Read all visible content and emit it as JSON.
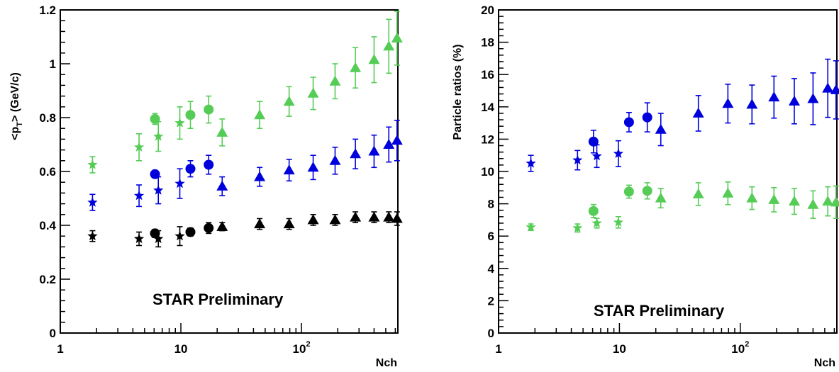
{
  "colors": {
    "black": "#000000",
    "blue": "#0000dd",
    "green": "#55cc55"
  },
  "chart_data": [
    {
      "type": "scatter",
      "xscale": "log",
      "xlim": [
        1,
        630
      ],
      "ylim": [
        0,
        1.2
      ],
      "xlabel": "Nch",
      "ylabel": "<p_T> (GeV/c)",
      "ylabel_parts": [
        "<p",
        "T",
        "> (GeV/c)"
      ],
      "xticks": [
        {
          "value": 1,
          "label": "1",
          "sup": ""
        },
        {
          "value": 10,
          "label": "10",
          "sup": ""
        },
        {
          "value": 100,
          "label": "10",
          "sup": "2"
        }
      ],
      "yticks": [
        "0",
        "0.2",
        "0.4",
        "0.6",
        "0.8",
        "1",
        "1.2"
      ],
      "annotation": "STAR Preliminary",
      "series": [
        {
          "color": "black",
          "marker": "star",
          "points": [
            [
              1.85,
              0.36,
              0.02
            ],
            [
              4.5,
              0.35,
              0.025
            ],
            [
              6.5,
              0.35,
              0.03
            ],
            [
              9.8,
              0.36,
              0.035
            ]
          ]
        },
        {
          "color": "black",
          "marker": "circle",
          "points": [
            [
              6.1,
              0.37,
              0.015
            ],
            [
              12.0,
              0.375,
              0.015
            ],
            [
              17.0,
              0.39,
              0.02
            ]
          ]
        },
        {
          "color": "black",
          "marker": "triangle",
          "points": [
            [
              22,
              0.395,
              0.015
            ],
            [
              45,
              0.405,
              0.02
            ],
            [
              79,
              0.405,
              0.02
            ],
            [
              125,
              0.42,
              0.02
            ],
            [
              190,
              0.42,
              0.02
            ],
            [
              280,
              0.43,
              0.02
            ],
            [
              400,
              0.43,
              0.02
            ],
            [
              530,
              0.43,
              0.02
            ],
            [
              620,
              0.425,
              0.025
            ]
          ]
        },
        {
          "color": "blue",
          "marker": "star",
          "points": [
            [
              1.85,
              0.485,
              0.03
            ],
            [
              4.5,
              0.51,
              0.04
            ],
            [
              6.5,
              0.53,
              0.05
            ],
            [
              9.8,
              0.555,
              0.055
            ]
          ]
        },
        {
          "color": "blue",
          "marker": "circle",
          "points": [
            [
              6.1,
              0.59,
              0.0
            ],
            [
              12.0,
              0.61,
              0.03
            ],
            [
              17.0,
              0.625,
              0.035
            ]
          ]
        },
        {
          "color": "blue",
          "marker": "triangle",
          "points": [
            [
              22,
              0.545,
              0.035
            ],
            [
              45,
              0.58,
              0.035
            ],
            [
              79,
              0.605,
              0.04
            ],
            [
              125,
              0.615,
              0.045
            ],
            [
              190,
              0.64,
              0.05
            ],
            [
              280,
              0.665,
              0.055
            ],
            [
              400,
              0.675,
              0.06
            ],
            [
              530,
              0.7,
              0.065
            ],
            [
              620,
              0.715,
              0.075
            ]
          ]
        },
        {
          "color": "green",
          "marker": "star",
          "points": [
            [
              1.85,
              0.625,
              0.03
            ],
            [
              4.5,
              0.69,
              0.05
            ],
            [
              6.5,
              0.73,
              0.055
            ],
            [
              9.8,
              0.78,
              0.06
            ]
          ]
        },
        {
          "color": "green",
          "marker": "circle",
          "points": [
            [
              6.1,
              0.795,
              0.02
            ],
            [
              12.0,
              0.81,
              0.05
            ],
            [
              17.0,
              0.83,
              0.05
            ]
          ]
        },
        {
          "color": "green",
          "marker": "triangle",
          "points": [
            [
              22,
              0.745,
              0.05
            ],
            [
              45,
              0.81,
              0.05
            ],
            [
              79,
              0.86,
              0.055
            ],
            [
              125,
              0.89,
              0.06
            ],
            [
              190,
              0.935,
              0.065
            ],
            [
              280,
              0.985,
              0.075
            ],
            [
              400,
              1.015,
              0.085
            ],
            [
              530,
              1.065,
              0.1
            ],
            [
              620,
              1.095,
              0.1
            ]
          ]
        }
      ]
    },
    {
      "type": "scatter",
      "xscale": "log",
      "xlim": [
        1,
        630
      ],
      "ylim": [
        0,
        20
      ],
      "xlabel": "Nch",
      "ylabel": "Particle ratios (%)",
      "xticks": [
        {
          "value": 1,
          "label": "1",
          "sup": ""
        },
        {
          "value": 10,
          "label": "10",
          "sup": ""
        },
        {
          "value": 100,
          "label": "10",
          "sup": "2"
        }
      ],
      "yticks": [
        "0",
        "2",
        "4",
        "6",
        "8",
        "10",
        "12",
        "14",
        "16",
        "18",
        "20"
      ],
      "annotation": "STAR Preliminary",
      "series": [
        {
          "color": "blue",
          "marker": "star",
          "points": [
            [
              1.85,
              10.5,
              0.5
            ],
            [
              4.5,
              10.7,
              0.6
            ],
            [
              6.5,
              10.95,
              0.7
            ],
            [
              9.8,
              11.1,
              0.8
            ]
          ]
        },
        {
          "color": "blue",
          "marker": "circle",
          "points": [
            [
              6.1,
              11.85,
              0.7
            ],
            [
              12.0,
              13.05,
              0.6
            ],
            [
              17.0,
              13.35,
              0.9
            ]
          ]
        },
        {
          "color": "blue",
          "marker": "triangle",
          "points": [
            [
              22,
              12.6,
              1.0
            ],
            [
              45,
              13.6,
              1.1
            ],
            [
              79,
              14.2,
              1.2
            ],
            [
              125,
              14.15,
              1.2
            ],
            [
              190,
              14.6,
              1.3
            ],
            [
              280,
              14.35,
              1.4
            ],
            [
              400,
              14.5,
              1.6
            ],
            [
              530,
              15.15,
              1.8
            ],
            [
              620,
              15.05,
              1.8
            ]
          ]
        },
        {
          "color": "green",
          "marker": "star",
          "points": [
            [
              1.85,
              6.55,
              0.2
            ],
            [
              4.5,
              6.5,
              0.25
            ],
            [
              6.5,
              6.8,
              0.3
            ],
            [
              9.8,
              6.85,
              0.35
            ]
          ]
        },
        {
          "color": "green",
          "marker": "circle",
          "points": [
            [
              6.1,
              7.55,
              0.4
            ],
            [
              12.0,
              8.75,
              0.4
            ],
            [
              17.0,
              8.8,
              0.5
            ]
          ]
        },
        {
          "color": "green",
          "marker": "triangle",
          "points": [
            [
              22,
              8.35,
              0.6
            ],
            [
              45,
              8.6,
              0.7
            ],
            [
              79,
              8.65,
              0.7
            ],
            [
              125,
              8.35,
              0.7
            ],
            [
              190,
              8.25,
              0.75
            ],
            [
              280,
              8.15,
              0.8
            ],
            [
              400,
              7.95,
              0.85
            ],
            [
              530,
              8.15,
              0.9
            ],
            [
              620,
              8.1,
              1.0
            ]
          ]
        }
      ]
    }
  ]
}
